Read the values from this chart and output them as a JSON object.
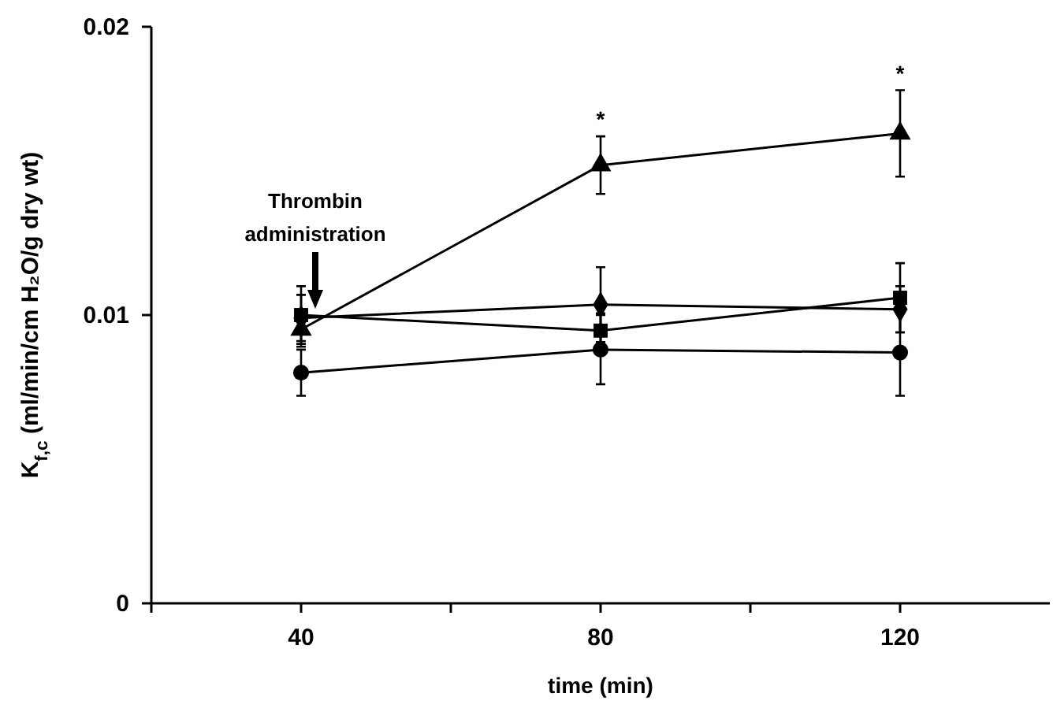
{
  "chart_data": {
    "type": "line",
    "xlabel": "time (min)",
    "ylabel": "K$_{f,c}$ (ml/min/cm H₂O/g dry wt)",
    "x": [
      40,
      80,
      120
    ],
    "xlim": [
      20,
      140
    ],
    "xticks": [
      {
        "value": 20,
        "label": null
      },
      40,
      {
        "value": 60,
        "label": null
      },
      80,
      {
        "value": 100,
        "label": null
      },
      120
    ],
    "ylim": [
      0,
      0.02
    ],
    "yticks": [
      0,
      0.01,
      0.02
    ],
    "grid": false,
    "line_style": "solid",
    "series": [
      {
        "color": "#000000",
        "marker": "circle",
        "values": [
          0.008,
          0.0088,
          0.0087
        ],
        "errors": [
          0.0008,
          0.0012,
          0.0015
        ]
      },
      {
        "color": "#000000",
        "marker": "diamond",
        "values": [
          0.0099,
          0.01036,
          0.0102
        ],
        "errors": [
          0.0008,
          0.0013,
          0.0008
        ]
      },
      {
        "color": "#000000",
        "marker": "square",
        "values": [
          0.01,
          0.00946,
          0.0106
        ],
        "errors": [
          0.001,
          0.0006,
          0.0012
        ]
      },
      {
        "color": "#000000",
        "marker": "triangle",
        "values": [
          0.0095,
          0.0152,
          0.0163
        ],
        "errors": [
          0.0006,
          0.001,
          0.0015
        ]
      }
    ],
    "annotations": [
      "Thrombin administration",
      {
        "text": "*",
        "x": 80,
        "y": 0.0162
      },
      {
        "text": "*",
        "x": 120,
        "y": 0.0178
      }
    ]
  }
}
